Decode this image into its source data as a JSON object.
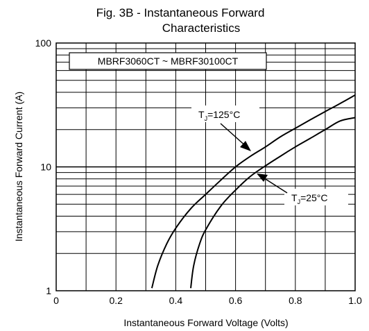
{
  "chart_data": {
    "type": "line",
    "title": "Fig. 3B - Instantaneous Forward",
    "subtitle": "Characteristics",
    "xlabel": "Instantaneous Forward Voltage (Volts)",
    "ylabel": "Instantaneous Forward Current (A)",
    "xlim": [
      0,
      1.0
    ],
    "ylim": [
      1,
      100
    ],
    "yscale": "log",
    "grid": true,
    "x_ticks": [
      "0",
      "0.2",
      "0.4",
      "0.6",
      "0.8",
      "1.0"
    ],
    "y_ticks": [
      "1",
      "10",
      "100"
    ],
    "annotation": "MBRF3060CT ~ MBRF30100CT",
    "series": [
      {
        "name": "TJ=125°C",
        "label_main": "T",
        "label_sub": "J",
        "label_rest": "=125°C",
        "points": [
          [
            0.32,
            1.05
          ],
          [
            0.34,
            1.6
          ],
          [
            0.37,
            2.4
          ],
          [
            0.4,
            3.2
          ],
          [
            0.45,
            4.6
          ],
          [
            0.5,
            6.0
          ],
          [
            0.55,
            7.8
          ],
          [
            0.6,
            10.0
          ],
          [
            0.65,
            12.2
          ],
          [
            0.7,
            14.5
          ],
          [
            0.75,
            17.5
          ],
          [
            0.8,
            20.5
          ],
          [
            0.85,
            24.0
          ],
          [
            0.9,
            28.0
          ],
          [
            0.95,
            32.5
          ],
          [
            1.0,
            38.0
          ]
        ]
      },
      {
        "name": "TJ=25°C",
        "label_main": "T",
        "label_sub": "J",
        "label_rest": "=25°C",
        "points": [
          [
            0.45,
            1.05
          ],
          [
            0.46,
            1.6
          ],
          [
            0.48,
            2.4
          ],
          [
            0.5,
            3.1
          ],
          [
            0.55,
            4.8
          ],
          [
            0.6,
            6.5
          ],
          [
            0.65,
            8.4
          ],
          [
            0.7,
            10.2
          ],
          [
            0.75,
            12.2
          ],
          [
            0.8,
            14.5
          ],
          [
            0.85,
            17.0
          ],
          [
            0.9,
            20.0
          ],
          [
            0.95,
            23.5
          ],
          [
            1.0,
            25.0
          ]
        ]
      }
    ]
  }
}
